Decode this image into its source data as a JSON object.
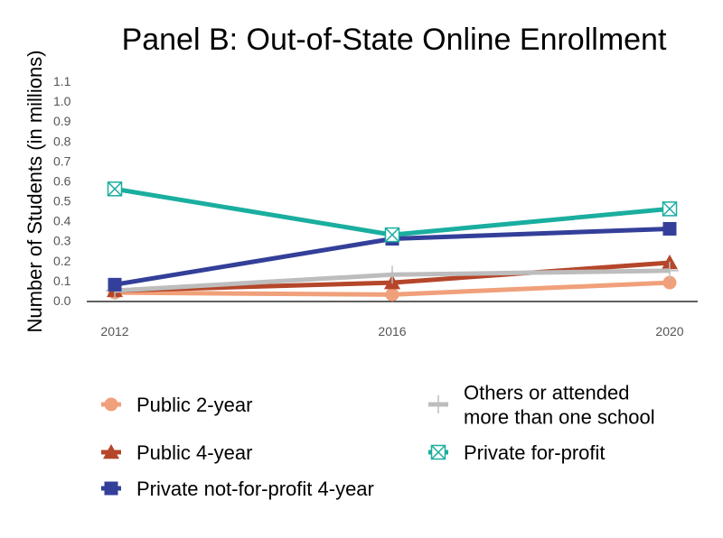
{
  "chart_data": {
    "type": "line",
    "title": "Panel B: Out-of-State Online Enrollment",
    "xlabel": "",
    "ylabel": "Number of Students (in millions)",
    "x": [
      "2012",
      "2016",
      "2020"
    ],
    "ylim": [
      0,
      1.1
    ],
    "yticks": [
      "0.0",
      "0.1",
      "0.2",
      "0.3",
      "0.4",
      "0.5",
      "0.6",
      "0.7",
      "0.8",
      "0.9",
      "1.0",
      "1.1"
    ],
    "grid": false,
    "legend_position": "bottom",
    "series": [
      {
        "name": "Private for-profit",
        "values": [
          0.56,
          0.33,
          0.46
        ],
        "color": "#1aae9f",
        "marker": "square-x"
      },
      {
        "name": "Private not-for-profit 4-year",
        "values": [
          0.08,
          0.31,
          0.36
        ],
        "color": "#333f99",
        "marker": "square"
      },
      {
        "name": "Others or attended more than one school",
        "values": [
          0.05,
          0.13,
          0.15
        ],
        "color": "#bdbdbd",
        "marker": "plus"
      },
      {
        "name": "Public 4-year",
        "values": [
          0.05,
          0.09,
          0.19
        ],
        "color": "#b5462a",
        "marker": "triangle"
      },
      {
        "name": "Public 2-year",
        "values": [
          0.04,
          0.03,
          0.09
        ],
        "color": "#f0a07a",
        "marker": "circle"
      }
    ],
    "legend": [
      {
        "label_lines": [
          "Public 2-year"
        ],
        "series": "Public 2-year"
      },
      {
        "label_lines": [
          "Others or attended",
          "more than one school"
        ],
        "series": "Others or attended more than one school"
      },
      {
        "label_lines": [
          "Public 4-year"
        ],
        "series": "Public 4-year"
      },
      {
        "label_lines": [
          "Private for-profit"
        ],
        "series": "Private for-profit"
      },
      {
        "label_lines": [
          "Private not-for-profit 4-year"
        ],
        "series": "Private not-for-profit 4-year"
      }
    ]
  }
}
